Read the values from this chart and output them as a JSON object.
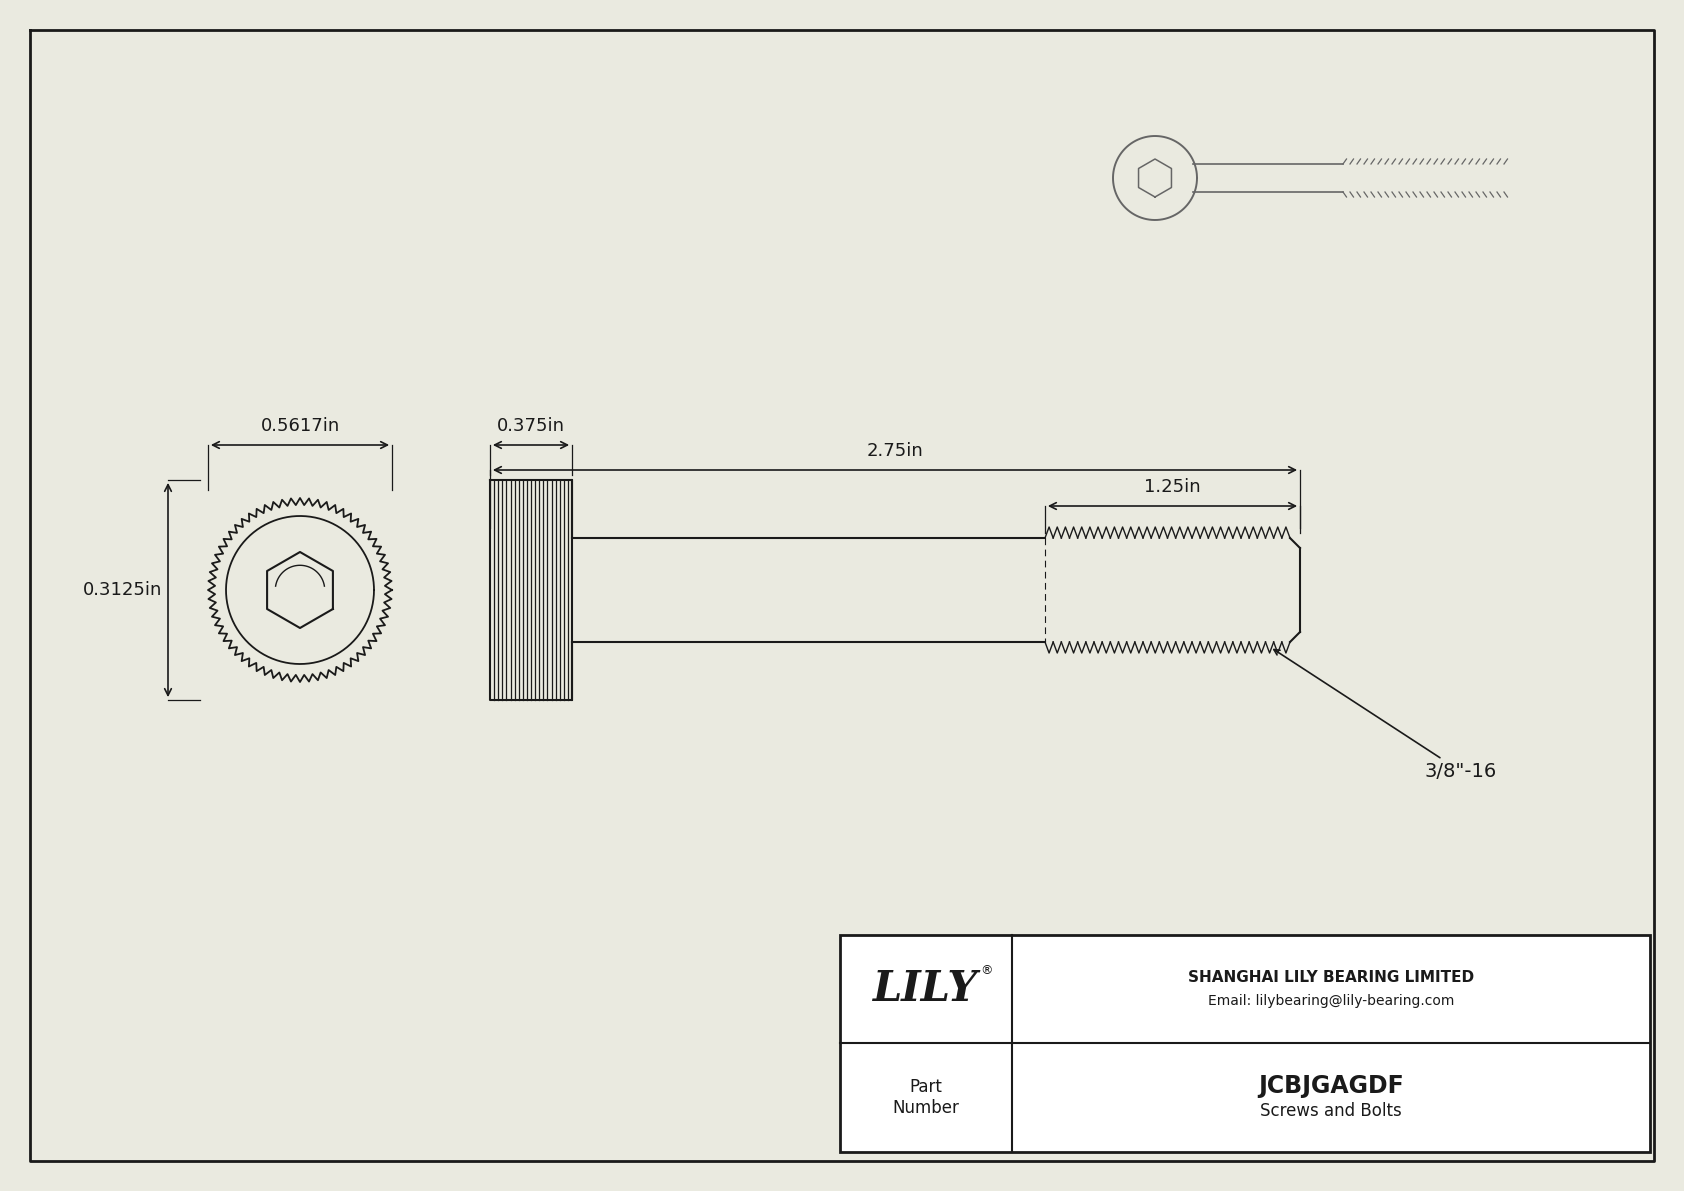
{
  "bg_color": "#eaeae0",
  "line_color": "#1a1a1a",
  "dim_color": "#1a1a1a",
  "title": "JCBJGAGDF",
  "subtitle": "Screws and Bolts",
  "company": "SHANGHAI LILY BEARING LIMITED",
  "email": "Email: lilybearing@lily-bearing.com",
  "part_label": "Part\nNumber",
  "dim_head_width": "0.5617in",
  "dim_shank_width": "0.375in",
  "dim_total_length": "2.75in",
  "dim_thread_length": "1.25in",
  "dim_head_height": "0.3125in",
  "thread_label": "3/8\"-16",
  "logo_text": "LILY",
  "logo_reg": "®"
}
